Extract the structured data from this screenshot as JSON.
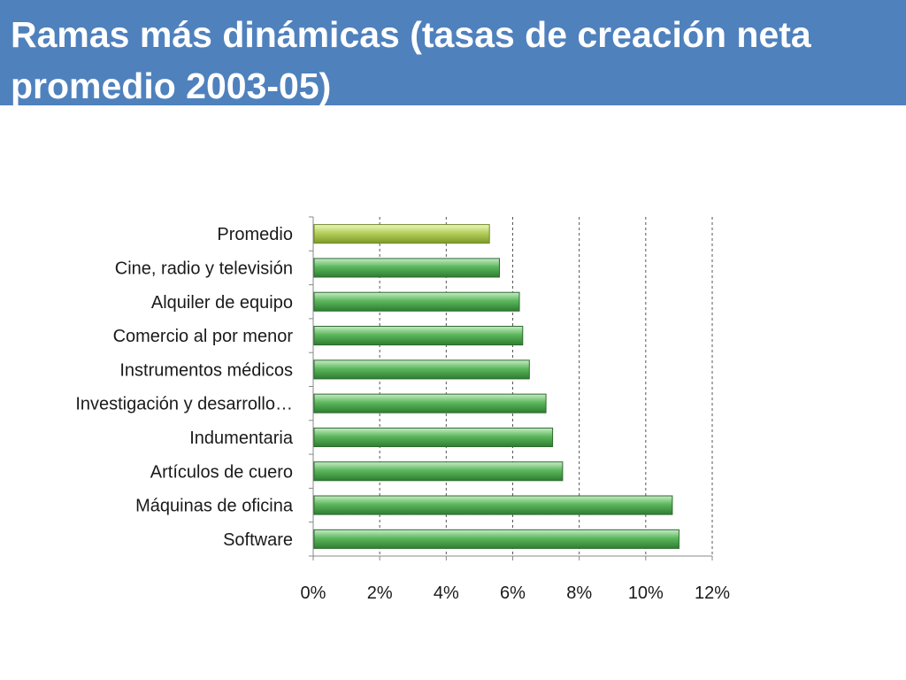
{
  "slide": {
    "title": "Ramas más dinámicas (tasas de creación neta promedio 2003-05)"
  },
  "colors": {
    "title_band": "#4f81bd",
    "bar_default": "#5cb85c",
    "bar_highlight": "#b5cf5a"
  },
  "chart_data": {
    "type": "bar",
    "orientation": "horizontal",
    "title": "",
    "xlabel": "",
    "ylabel": "",
    "xlim": [
      0,
      0.12
    ],
    "x_ticks": [
      0,
      0.02,
      0.04,
      0.06,
      0.08,
      0.1,
      0.12
    ],
    "x_tick_labels": [
      "0%",
      "2%",
      "4%",
      "6%",
      "8%",
      "10%",
      "12%"
    ],
    "grid": "vertical-dashed",
    "legend": "none",
    "categories": [
      "Promedio",
      "Cine, radio y televisión",
      "Alquiler de equipo",
      "Comercio al por menor",
      "Instrumentos médicos",
      "Investigación y desarrollo…",
      "Indumentaria",
      "Artículos de cuero",
      "Máquinas de oficina",
      "Software"
    ],
    "values": [
      0.053,
      0.056,
      0.062,
      0.063,
      0.065,
      0.07,
      0.072,
      0.075,
      0.108,
      0.11
    ],
    "highlight_category": "Promedio"
  }
}
